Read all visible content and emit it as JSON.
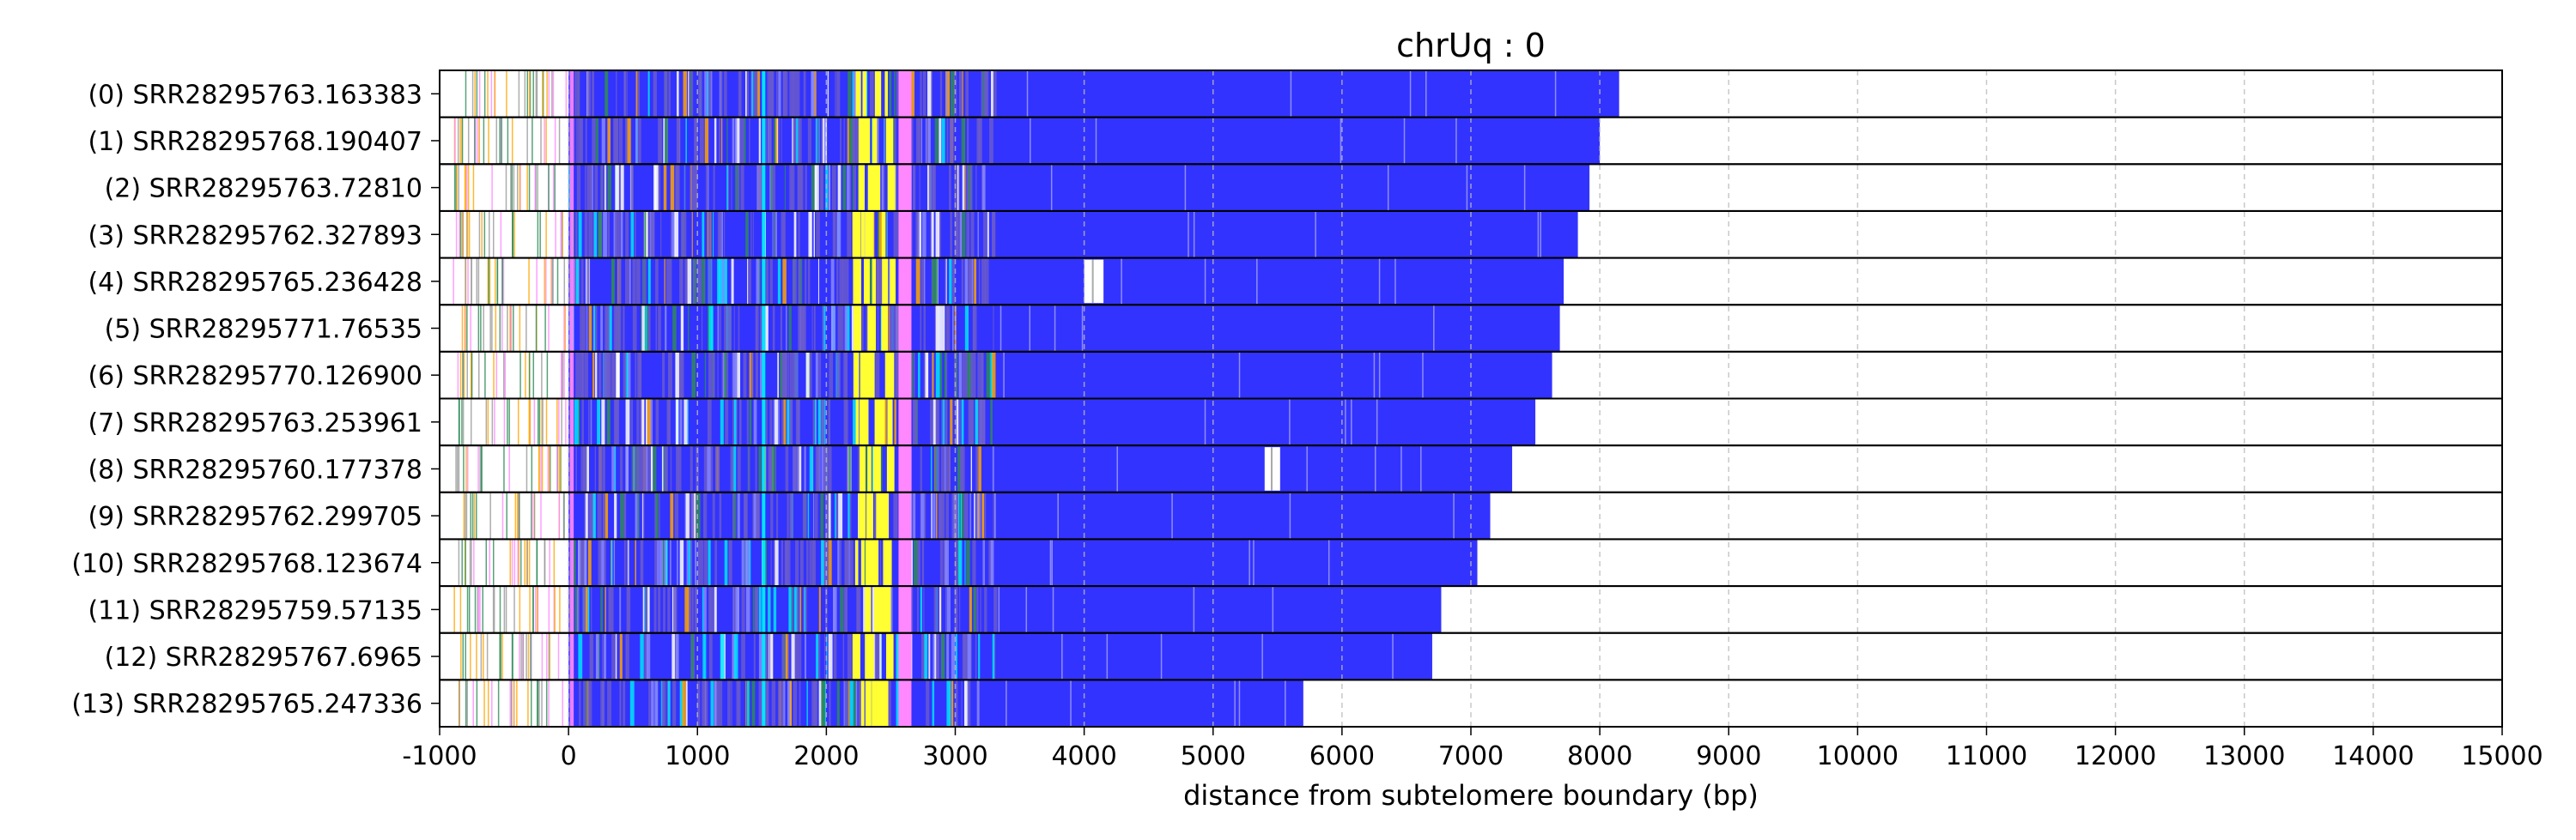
{
  "chart_data": {
    "type": "bar",
    "title": "chrUq : 0",
    "xlabel": "distance from subtelomere boundary (bp)",
    "ylabel": "",
    "xlim": [
      -1000,
      15000
    ],
    "x_ticks": [
      -1000,
      0,
      1000,
      2000,
      3000,
      4000,
      5000,
      6000,
      7000,
      8000,
      9000,
      10000,
      11000,
      12000,
      13000,
      14000,
      15000
    ],
    "grid": "vertical dashed",
    "colors": {
      "repeat_fill": "#3333ff",
      "mixed_region": "#6a5acd",
      "cyan_marks": "#00e5ff",
      "yellow_marks": "#ffff33",
      "pink_marks": "#ff88ff",
      "green_marks": "#2e8b57",
      "orange_marks": "#ffa500",
      "grid": "#bbbbbb",
      "border": "#000000"
    },
    "reads": [
      {
        "label": "(0) SRR28295763.163383",
        "end": 8150,
        "gaps": []
      },
      {
        "label": "(1) SRR28295768.190407",
        "end": 8000,
        "gaps": []
      },
      {
        "label": "(2) SRR28295763.72810",
        "end": 7920,
        "gaps": []
      },
      {
        "label": "(3) SRR28295762.327893",
        "end": 7830,
        "gaps": []
      },
      {
        "label": "(4) SRR28295765.236428",
        "end": 7720,
        "gaps": [
          [
            4000,
            4150
          ]
        ]
      },
      {
        "label": "(5) SRR28295771.76535",
        "end": 7690,
        "gaps": []
      },
      {
        "label": "(6) SRR28295770.126900",
        "end": 7630,
        "gaps": []
      },
      {
        "label": "(7) SRR28295763.253961",
        "end": 7500,
        "gaps": []
      },
      {
        "label": "(8) SRR28295760.177378",
        "end": 7320,
        "gaps": [
          [
            5400,
            5520
          ]
        ]
      },
      {
        "label": "(9) SRR28295762.299705",
        "end": 7150,
        "gaps": []
      },
      {
        "label": "(10) SRR28295768.123674",
        "end": 7050,
        "gaps": []
      },
      {
        "label": "(11) SRR28295759.57135",
        "end": 6770,
        "gaps": []
      },
      {
        "label": "(12) SRR28295767.6965",
        "end": 6700,
        "gaps": []
      },
      {
        "label": "(13) SRR28295765.247336",
        "end": 5700,
        "gaps": []
      }
    ]
  }
}
